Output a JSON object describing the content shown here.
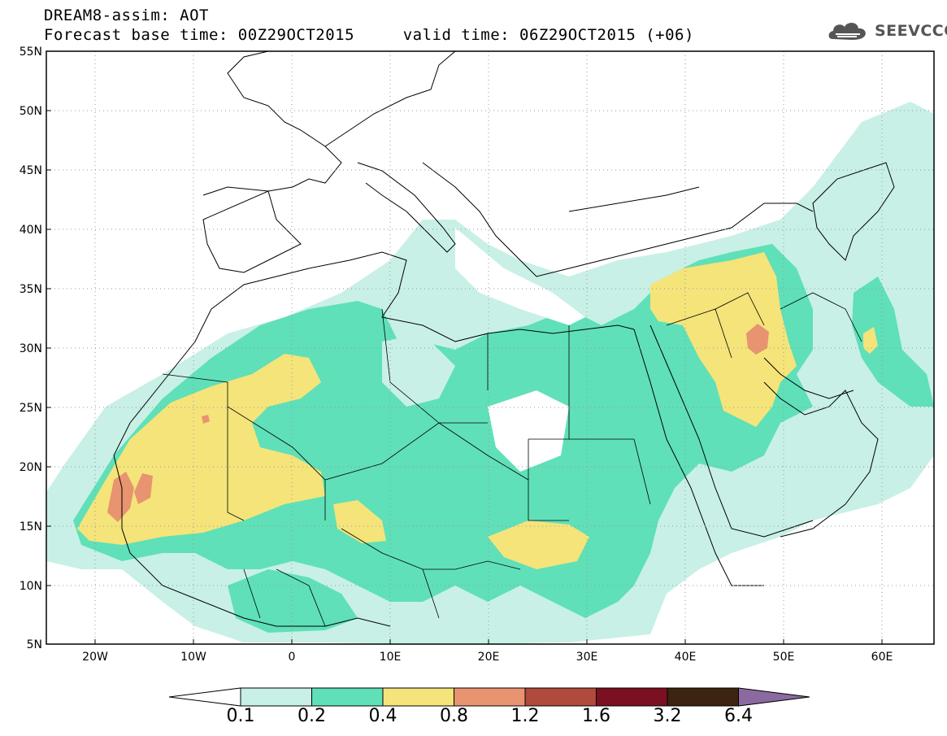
{
  "header": {
    "line1": "DREAM8-assim: AOT",
    "line2": "Forecast base time: 00Z29OCT2015     valid time: 06Z29OCT2015 (+06)"
  },
  "logo": {
    "text": "SEEVCCC",
    "icon": "cloud-logo-icon"
  },
  "map": {
    "lat_labels": [
      "55N",
      "50N",
      "45N",
      "40N",
      "35N",
      "30N",
      "25N",
      "20N",
      "15N",
      "10N",
      "5N"
    ],
    "lon_labels": [
      "20W",
      "10W",
      "0",
      "10E",
      "20E",
      "30E",
      "40E",
      "50E",
      "60E"
    ],
    "lon_range": [
      -25,
      65
    ],
    "lat_range": [
      5,
      55
    ],
    "grid": "dotted"
  },
  "colorbar": {
    "labels": [
      "0.1",
      "0.2",
      "0.4",
      "0.8",
      "1.2",
      "1.6",
      "3.2",
      "6.4"
    ],
    "colors": [
      "#ffffff",
      "#c8f0e6",
      "#5fe0b8",
      "#f4e47a",
      "#e89470",
      "#b04a3c",
      "#7a1022",
      "#3c2410",
      "#8a6aa0"
    ]
  }
}
